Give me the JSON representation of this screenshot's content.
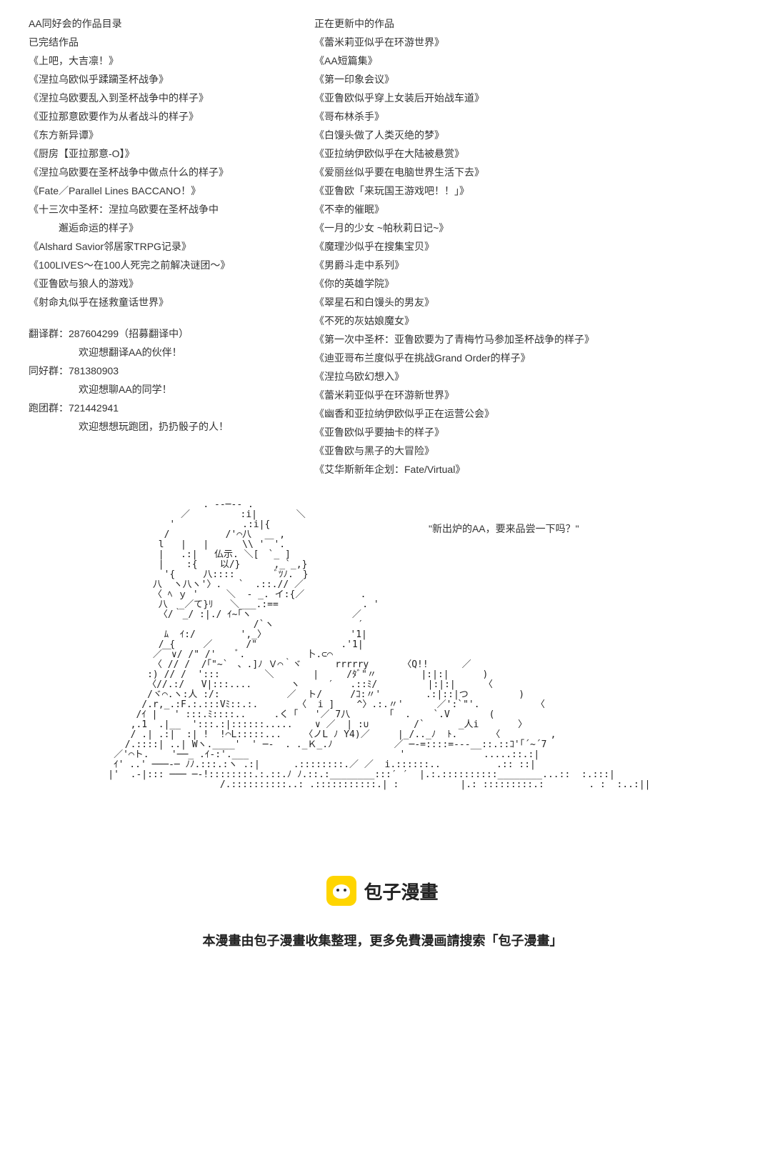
{
  "left": {
    "header": "AA同好会的作品目录",
    "completed_label": "已完结作品",
    "completed": [
      "《上吧，大吉凛！》",
      "《涅拉乌欧似乎蹂躏圣杯战争》",
      "《涅拉乌欧要乱入到圣杯战争中的样子》",
      "《亚拉那意欧要作为从者战斗的样子》",
      "《东方新异谭》",
      "《厨房【亚拉那意-O】》",
      "《涅拉乌欧要在圣杯战争中做点什么的样子》",
      "《Fate／Parallel Lines BACCANO！》",
      "《十三次中圣杯：涅拉乌欧要在圣杯战争中",
      "　邂逅命运的样子》",
      "《Alshard Savior邻居家TRPG记录》",
      "《100LIVES～在100人死完之前解决谜团～》",
      "《亚鲁欧与狼人的游戏》",
      "《射命丸似乎在拯救童话世界》"
    ],
    "groups": [
      {
        "name": "翻译群：",
        "num": "287604299（招募翻译中）",
        "note": "欢迎想翻译AA的伙伴！"
      },
      {
        "name": "同好群：",
        "num": "781380903",
        "note": "欢迎想聊AA的同学！"
      },
      {
        "name": "跑团群：",
        "num": "721442941",
        "note": "欢迎想想玩跑团，扔扔骰子的人！"
      }
    ]
  },
  "right": {
    "updating_label": "正在更新中的作品",
    "updating": [
      "《蕾米莉亚似乎在环游世界》",
      "《AA短篇集》",
      "《第一印象会议》",
      "《亚鲁欧似乎穿上女装后开始战车道》",
      "《哥布林杀手》",
      "《白馒头做了人类灭绝的梦》",
      "《亚拉纳伊欧似乎在大陆被悬赏》",
      "《爱丽丝似乎要在电脑世界生活下去》",
      "《亚鲁欧「来玩国王游戏吧！！」》",
      "《不幸的催眠》",
      "《一月的少女 ~帕秋莉日记~》",
      "《魔理沙似乎在搜集宝贝》",
      "《男爵斗走中系列》",
      "《你的英雄学院》",
      "《翠星石和白馒头的男友》",
      "《不死的灰姑娘魔女》",
      "《第一次中圣杯：亚鲁欧要为了青梅竹马参加圣杯战争的样子》",
      "《迪亚哥布兰度似乎在挑战Grand Order的样子》",
      "《涅拉乌欧幻想入》",
      "《蕾米莉亚似乎在环游新世界》",
      "《幽香和亚拉纳伊欧似乎正在运营公会》",
      "《亚鲁欧似乎要抽卡的样子》",
      "《亚鲁欧与黑子的大冒险》",
      "《艾华斯新年企划：Fate/Virtual》"
    ]
  },
  "quote": "\"新出炉的AA，要来品尝一下吗？\"",
  "ascii": "                     . --─-- .\n                 ／         :i|       ＼\n               '            .:i|{\n              /          /'⌒八     ,\n             l   |   |      \\\\ '￣'.\n             |   .:|   仏示. ＼[　`_ ]\n             |    :{    以/}      ,_`_,}\n              '{     八::::       ﾞﾂﾉ.　}\n            八  ヽ八ヽ'〉.   `  .::.// ／\n            〈 ﾍ ｙ '     ＼  ‐ _. イ:{／          .\n             八  _／て}ﾘ   ＼___.:==               . '\n             〈/｀_/ :|./ ｲ~｢ヽ                  ／\n                              /`ヽ               ′\n              ﾑ  ｲ:/        ',_〉               '1|\n             / {     ／      /\"               .'1|\n            ／￣∨/ /\" /'    ﾞ.           卜.⊂⌒\n            〈 // /  /｢\"~`　、.]ﾉ Ｖ⌒｀ヾ      rrrrry      〈Q!!      ／\n           :) // /  ':::        ＼       |     /ﾀﾞ\"〃        |:|:|      )\n           〈//.:/   V|:::....       ヽ     ′   .::ﾐ/         |:|:|     〈\n           /ヾ⌒.ヽ:人 :/:            ／  ト/     /ｺ:〃'        .:|::|つ         )\n          /.r,_.:F.:.:::Vﾐ::.:.       〈  i ]    ^〉.:.〃'      ／':`\"'.          〈\n         /ｲ |   ' :::.ﾐ::::..     .く「   '／ 7八       ｢  .    `.V       (\n        ,.1  .|__  ':::.:|::::::.....    ∨ ／  | :∪        /`      _人i       〉\n        / .| .:|  :| !  !⌒L:::::...    〈ノL ﾉ Y4)／     |_/.._ﾉ  ﾄ.      〈         ,\n       /.::::| ..| Wヽ.____'  ' ─-  . ._Ｋ_.ﾉ           ／ ─-=::::=---__::.::ｺ'｢´~´7\n     ／'⌒ト.    '──_ .ｲ-:'.___                           '              .....::.:|\n     ｲ' ..' ───-─ ﾉﾉ.:::.:ヽ .:|      .::::::::.／ ／  i.::::::..          .:: ::|\n    |'  .-|::: ─── ─-!::::::::.:.::.ﾉ ﾉ.::.:________:::′ ′  |.:.::::::::::________...::  :.:::|\n                        /.::::::::::..: .:::::::::::.| :           |.: :::::::::.:        . :  :..:||",
  "brand": "包子漫畫",
  "footer_note": "本漫畫由包子漫畫收集整理，更多免費漫画請搜索「包子漫畫」"
}
